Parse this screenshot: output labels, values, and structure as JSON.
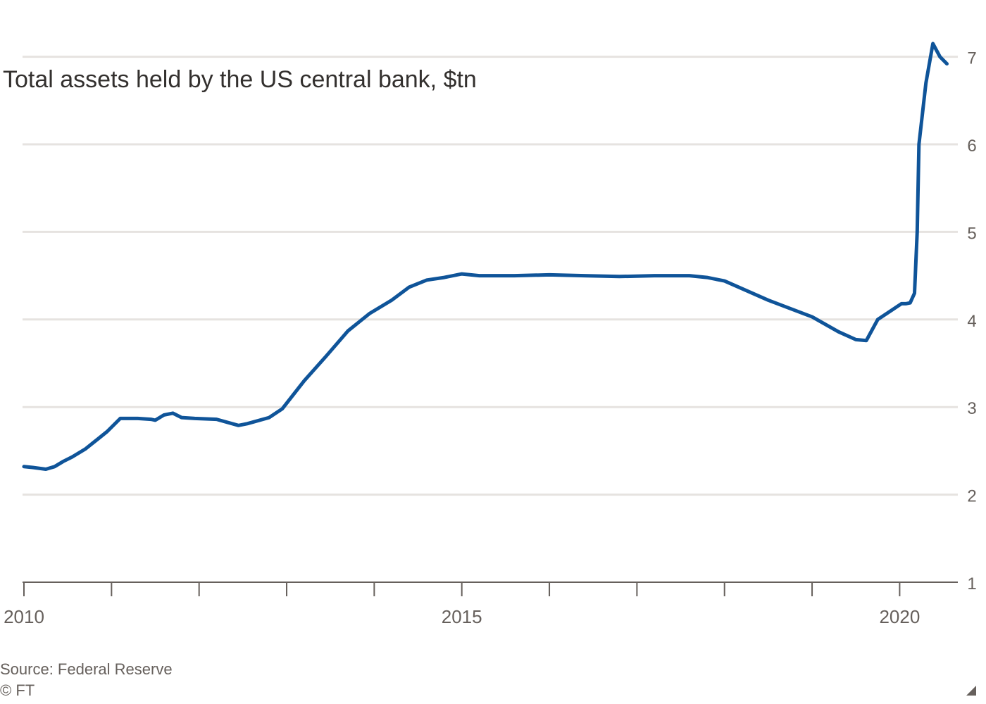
{
  "chart_data": {
    "type": "line",
    "title": "Total assets held by the US central bank, $tn",
    "ylim": [
      1,
      7.2
    ],
    "y_ticks": [
      1,
      2,
      3,
      4,
      5,
      6,
      7
    ],
    "y_tick_labels": [
      "1",
      "2",
      "3",
      "4",
      "5",
      "6",
      "7"
    ],
    "y_axis_side": "right",
    "x_range": [
      2010,
      2020.6
    ],
    "x_ticks": [
      2010,
      2011,
      2012,
      2013,
      2014,
      2015,
      2016,
      2017,
      2018,
      2019,
      2020
    ],
    "x_tick_labels": [
      {
        "x": 2010,
        "label": "2010"
      },
      {
        "x": 2015,
        "label": "2015"
      },
      {
        "x": 2020,
        "label": "2020"
      }
    ],
    "grid": "horizontal",
    "legend": "none",
    "line_color": "#0f5499",
    "series": [
      {
        "x": [
          2010.0,
          2010.1,
          2010.25,
          2010.35,
          2010.45,
          2010.55,
          2010.7,
          2010.85,
          2010.95,
          2011.1,
          2011.3,
          2011.45,
          2011.5,
          2011.6,
          2011.7,
          2011.8,
          2011.95,
          2012.2,
          2012.45,
          2012.55,
          2012.8,
          2012.95,
          2013.2,
          2013.45,
          2013.7,
          2013.95,
          2014.2,
          2014.4,
          2014.6,
          2014.8,
          2015.0,
          2015.2,
          2015.6,
          2016.0,
          2016.4,
          2016.8,
          2017.2,
          2017.6,
          2017.8,
          2018.0,
          2018.5,
          2019.0,
          2019.3,
          2019.5,
          2019.62,
          2019.75,
          2020.02,
          2020.07,
          2020.12,
          2020.17,
          2020.2,
          2020.22,
          2020.3,
          2020.38,
          2020.46,
          2020.54
        ],
        "values": [
          2.32,
          2.31,
          2.29,
          2.32,
          2.38,
          2.43,
          2.52,
          2.64,
          2.72,
          2.87,
          2.87,
          2.86,
          2.85,
          2.91,
          2.93,
          2.88,
          2.87,
          2.86,
          2.79,
          2.81,
          2.88,
          2.98,
          3.3,
          3.58,
          3.87,
          4.07,
          4.22,
          4.37,
          4.45,
          4.48,
          4.52,
          4.5,
          4.5,
          4.51,
          4.5,
          4.49,
          4.5,
          4.5,
          4.48,
          4.44,
          4.22,
          4.03,
          3.86,
          3.77,
          3.76,
          4.0,
          4.18,
          4.18,
          4.19,
          4.3,
          5.0,
          6.0,
          6.7,
          7.15,
          7.0,
          6.92
        ]
      }
    ],
    "source": "Source: Federal Reserve",
    "credit": "© FT"
  }
}
